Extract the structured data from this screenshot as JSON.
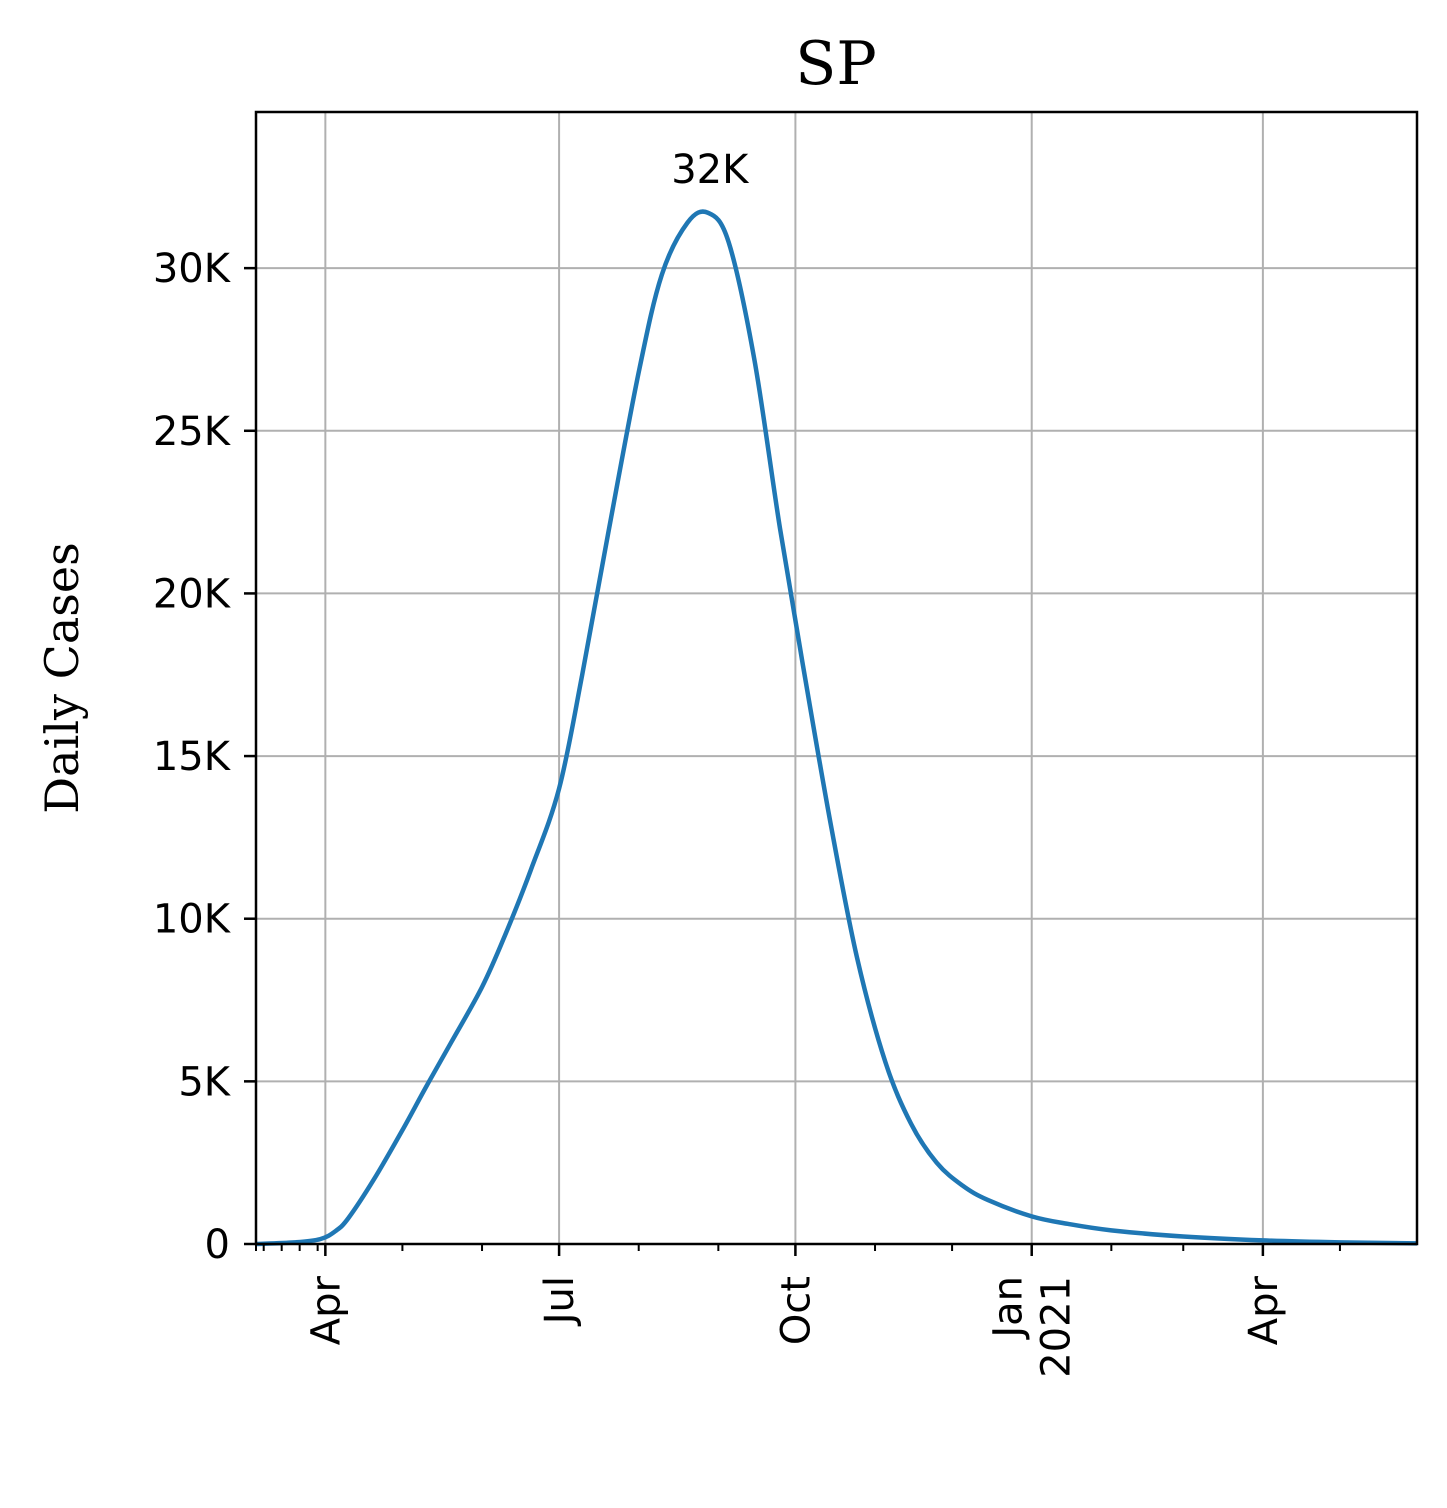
{
  "chart_data": {
    "type": "line",
    "title": "SP",
    "xlabel": "",
    "ylabel": "Daily Cases",
    "grid": true,
    "x_range": [
      "2020-03-05",
      "2021-05-31"
    ],
    "ylim": [
      0,
      34800
    ],
    "y_ticks": [
      {
        "value": 0,
        "label": "0"
      },
      {
        "value": 5000,
        "label": "5K"
      },
      {
        "value": 10000,
        "label": "10K"
      },
      {
        "value": 15000,
        "label": "15K"
      },
      {
        "value": 20000,
        "label": "20K"
      },
      {
        "value": 25000,
        "label": "25K"
      },
      {
        "value": 30000,
        "label": "30K"
      }
    ],
    "x_ticks": [
      {
        "date": "2020-04-01",
        "lines": [
          "Apr"
        ]
      },
      {
        "date": "2020-07-01",
        "lines": [
          "Jul"
        ]
      },
      {
        "date": "2020-10-01",
        "lines": [
          "Oct"
        ]
      },
      {
        "date": "2021-01-01",
        "lines": [
          "Jan",
          "2021"
        ]
      },
      {
        "date": "2021-04-01",
        "lines": [
          "Apr"
        ]
      }
    ],
    "x_minor_ticks": [
      "2020-03-05",
      "2020-03-08",
      "2020-03-15",
      "2020-03-22",
      "2020-03-29",
      "2020-05-01",
      "2020-06-01",
      "2020-08-01",
      "2020-09-01",
      "2020-11-01",
      "2020-12-01",
      "2021-02-01",
      "2021-03-01",
      "2021-05-01",
      "2021-06-01"
    ],
    "annotations": [
      {
        "text": "32K",
        "x": "2020-08-31",
        "y": 31700
      }
    ],
    "series": [
      {
        "color": "#1f77b4",
        "points": [
          {
            "x": "2020-03-05",
            "y": 0
          },
          {
            "x": "2020-03-20",
            "y": 50
          },
          {
            "x": "2020-03-30",
            "y": 150
          },
          {
            "x": "2020-04-05",
            "y": 400
          },
          {
            "x": "2020-04-10",
            "y": 800
          },
          {
            "x": "2020-04-20",
            "y": 2000
          },
          {
            "x": "2020-05-01",
            "y": 3500
          },
          {
            "x": "2020-05-10",
            "y": 4800
          },
          {
            "x": "2020-05-20",
            "y": 6200
          },
          {
            "x": "2020-06-01",
            "y": 7900
          },
          {
            "x": "2020-06-10",
            "y": 9500
          },
          {
            "x": "2020-06-20",
            "y": 11500
          },
          {
            "x": "2020-07-01",
            "y": 14000
          },
          {
            "x": "2020-07-10",
            "y": 17500
          },
          {
            "x": "2020-07-20",
            "y": 21800
          },
          {
            "x": "2020-08-01",
            "y": 26800
          },
          {
            "x": "2020-08-10",
            "y": 29800
          },
          {
            "x": "2020-08-20",
            "y": 31400
          },
          {
            "x": "2020-08-28",
            "y": 31700
          },
          {
            "x": "2020-09-05",
            "y": 30800
          },
          {
            "x": "2020-09-15",
            "y": 27200
          },
          {
            "x": "2020-09-25",
            "y": 22000
          },
          {
            "x": "2020-10-05",
            "y": 17300
          },
          {
            "x": "2020-10-15",
            "y": 12800
          },
          {
            "x": "2020-10-25",
            "y": 8800
          },
          {
            "x": "2020-11-05",
            "y": 5600
          },
          {
            "x": "2020-11-15",
            "y": 3700
          },
          {
            "x": "2020-11-25",
            "y": 2500
          },
          {
            "x": "2020-12-05",
            "y": 1800
          },
          {
            "x": "2020-12-15",
            "y": 1350
          },
          {
            "x": "2021-01-01",
            "y": 850
          },
          {
            "x": "2021-01-15",
            "y": 620
          },
          {
            "x": "2021-02-01",
            "y": 420
          },
          {
            "x": "2021-03-01",
            "y": 230
          },
          {
            "x": "2021-04-01",
            "y": 110
          },
          {
            "x": "2021-05-01",
            "y": 50
          },
          {
            "x": "2021-05-31",
            "y": 20
          }
        ]
      }
    ]
  }
}
